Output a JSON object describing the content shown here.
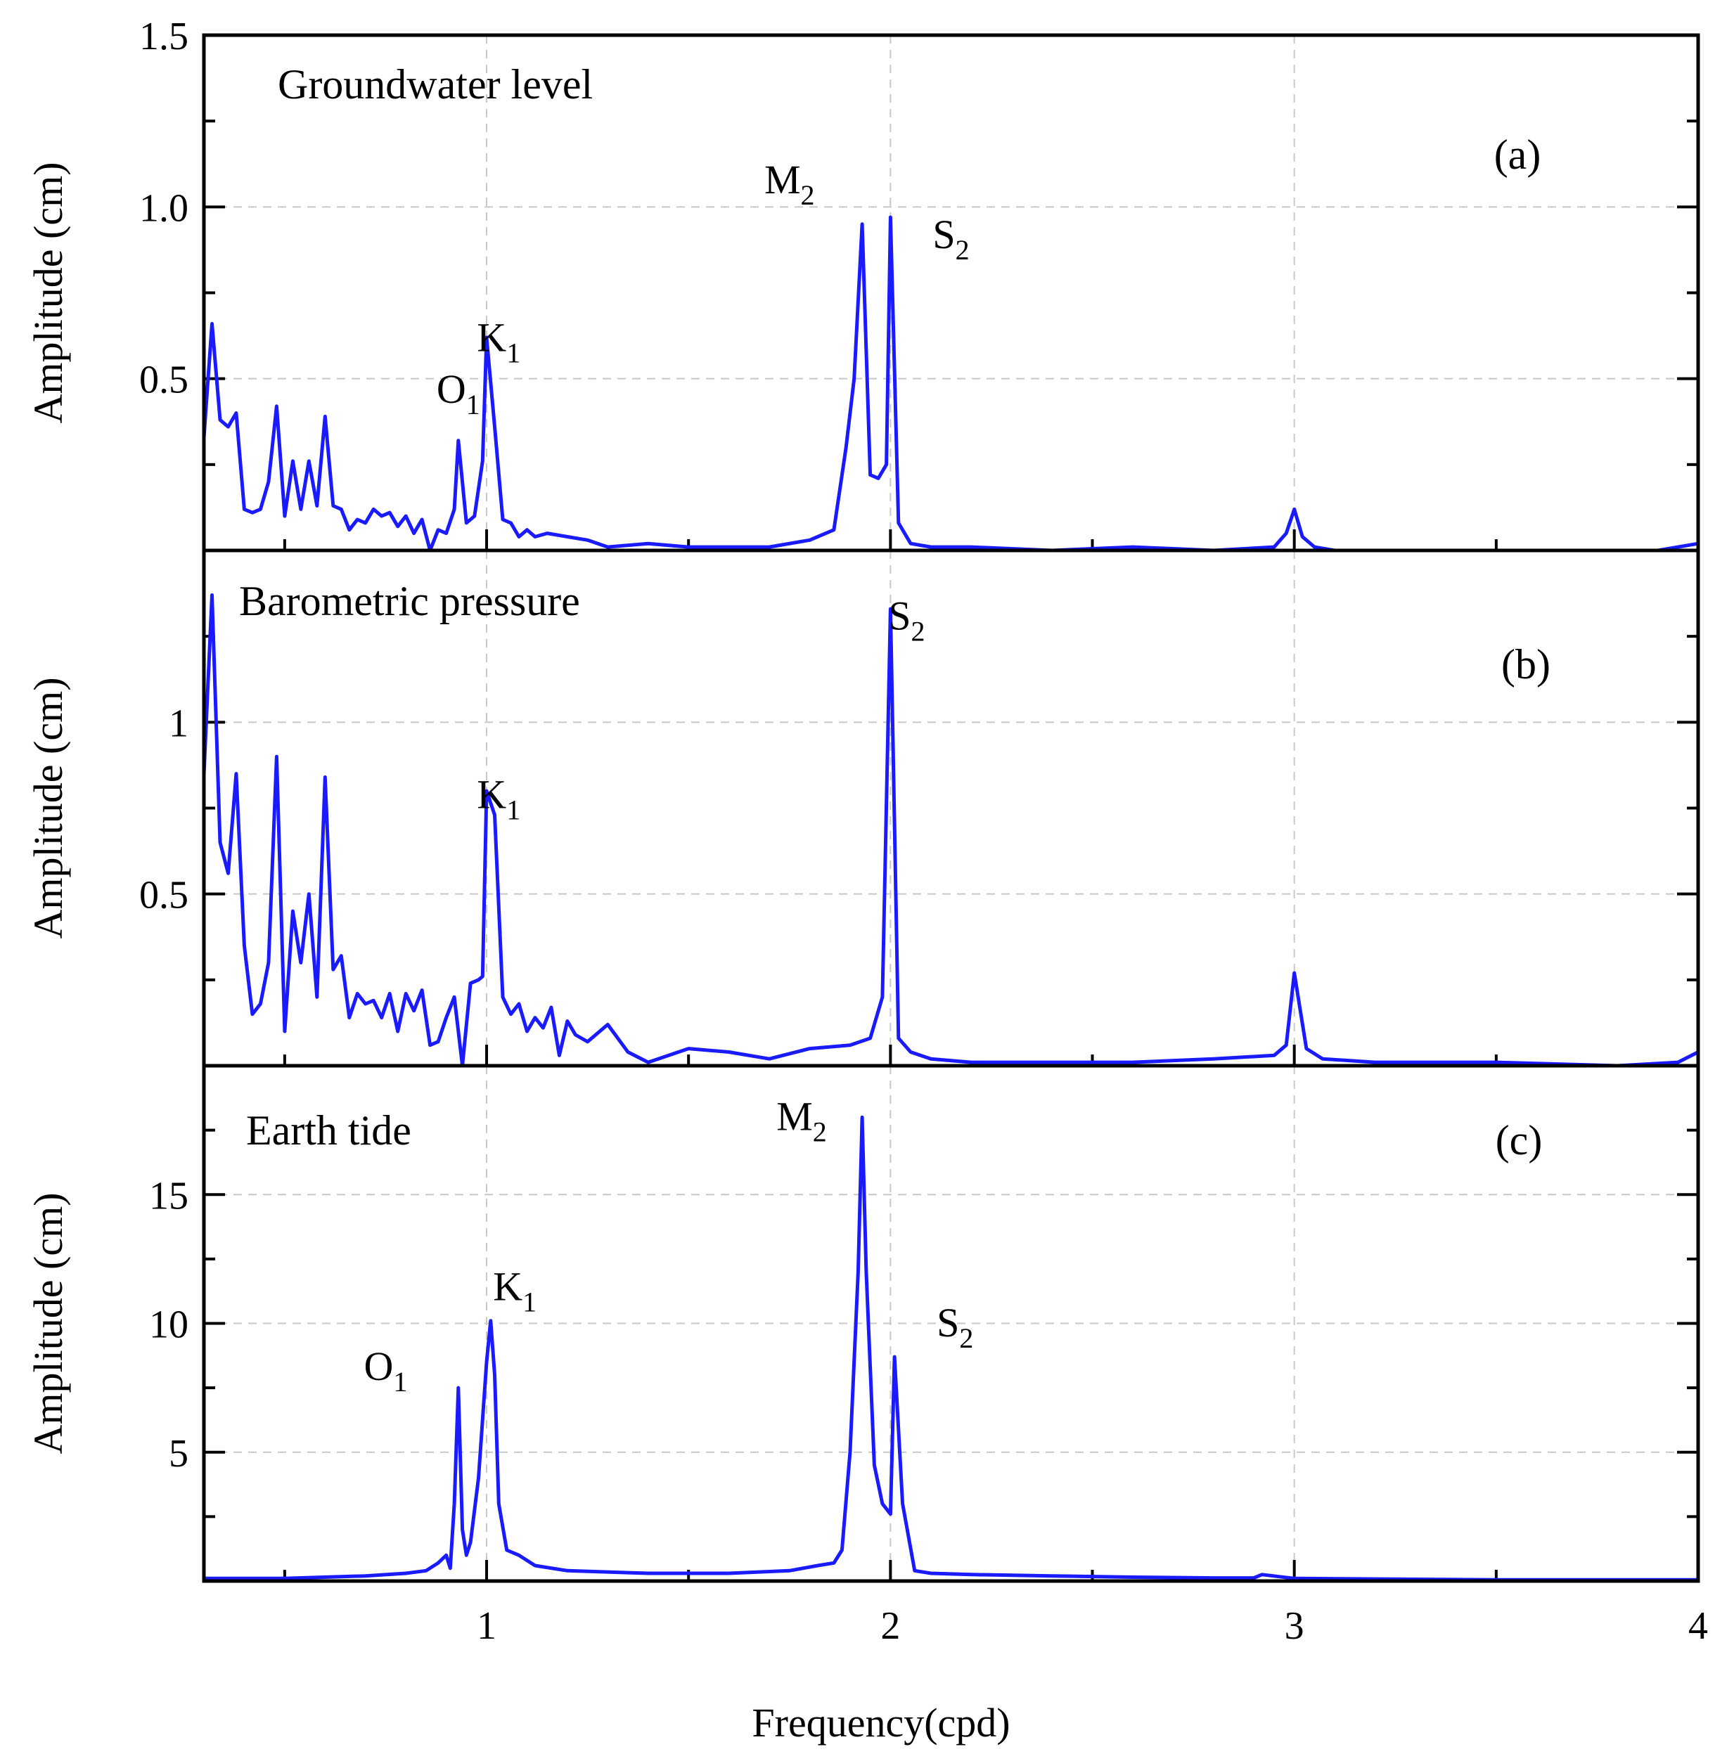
{
  "figure": {
    "xlabel": "Frequency(cpd)"
  },
  "colors": {
    "series": "#1a1aff",
    "axis": "#000000",
    "grid": "#c8c8c8"
  },
  "chart_data": [
    {
      "type": "line",
      "panel": "(a)",
      "title": "Groundwater level",
      "ylabel": "Amplitude (cm)",
      "xlim": [
        0.3,
        4.0
      ],
      "ylim": [
        0.0,
        1.5
      ],
      "xticks": [
        1,
        2,
        3,
        4
      ],
      "xtick_labels": [
        "1",
        "2",
        "3",
        "4"
      ],
      "yticks": [
        0.5,
        1.0,
        1.5
      ],
      "ytick_labels": [
        "0.5",
        "1.0",
        "1.5"
      ],
      "grid": true,
      "peak_labels": [
        {
          "main": "O",
          "sub": "1",
          "x": 0.93,
          "y": 0.43
        },
        {
          "main": "K",
          "sub": "1",
          "x": 1.03,
          "y": 0.58
        },
        {
          "main": "M",
          "sub": "2",
          "x": 1.75,
          "y": 1.04
        },
        {
          "main": "S",
          "sub": "2",
          "x": 2.15,
          "y": 0.88
        }
      ],
      "series": [
        {
          "x": [
            0.3,
            0.32,
            0.34,
            0.36,
            0.38,
            0.4,
            0.42,
            0.44,
            0.46,
            0.48,
            0.5,
            0.52,
            0.54,
            0.56,
            0.58,
            0.6,
            0.62,
            0.64,
            0.66,
            0.68,
            0.7,
            0.72,
            0.74,
            0.76,
            0.78,
            0.8,
            0.82,
            0.84,
            0.86,
            0.88,
            0.9,
            0.92,
            0.93,
            0.95,
            0.97,
            0.99,
            1.0,
            1.02,
            1.04,
            1.06,
            1.08,
            1.1,
            1.12,
            1.15,
            1.2,
            1.25,
            1.3,
            1.4,
            1.5,
            1.6,
            1.7,
            1.8,
            1.86,
            1.89,
            1.91,
            1.93,
            1.95,
            1.97,
            1.99,
            2.0,
            2.02,
            2.05,
            2.1,
            2.2,
            2.4,
            2.6,
            2.8,
            2.95,
            2.98,
            3.0,
            3.02,
            3.05,
            3.1,
            3.3,
            3.6,
            3.9,
            4.0
          ],
          "y": [
            0.33,
            0.66,
            0.38,
            0.36,
            0.4,
            0.12,
            0.11,
            0.12,
            0.2,
            0.42,
            0.1,
            0.26,
            0.12,
            0.26,
            0.13,
            0.39,
            0.13,
            0.12,
            0.06,
            0.09,
            0.08,
            0.12,
            0.1,
            0.11,
            0.07,
            0.1,
            0.05,
            0.09,
            0.0,
            0.06,
            0.05,
            0.12,
            0.32,
            0.08,
            0.1,
            0.26,
            0.62,
            0.36,
            0.09,
            0.08,
            0.04,
            0.06,
            0.04,
            0.05,
            0.04,
            0.03,
            0.01,
            0.02,
            0.01,
            0.01,
            0.01,
            0.03,
            0.06,
            0.3,
            0.5,
            0.95,
            0.22,
            0.21,
            0.25,
            0.97,
            0.08,
            0.02,
            0.01,
            0.01,
            0.0,
            0.01,
            0.0,
            0.01,
            0.05,
            0.12,
            0.04,
            0.01,
            0.0,
            0.0,
            0.0,
            0.0,
            0.02
          ]
        }
      ]
    },
    {
      "type": "line",
      "panel": "(b)",
      "title": "Barometric pressure",
      "ylabel": "Amplitude (cm)",
      "xlim": [
        0.3,
        4.0
      ],
      "ylim": [
        0.0,
        1.5
      ],
      "xticks": [
        1,
        2,
        3,
        4
      ],
      "xtick_labels": [
        "1",
        "2",
        "3",
        "4"
      ],
      "yticks": [
        0.5,
        1.0
      ],
      "ytick_labels": [
        "0.5",
        "1"
      ],
      "grid": true,
      "peak_labels": [
        {
          "main": "K",
          "sub": "1",
          "x": 1.03,
          "y": 0.75
        },
        {
          "main": "S",
          "sub": "2",
          "x": 2.04,
          "y": 1.27
        }
      ],
      "series": [
        {
          "x": [
            0.3,
            0.32,
            0.34,
            0.36,
            0.38,
            0.4,
            0.42,
            0.44,
            0.46,
            0.48,
            0.5,
            0.52,
            0.54,
            0.56,
            0.58,
            0.6,
            0.62,
            0.64,
            0.66,
            0.68,
            0.7,
            0.72,
            0.74,
            0.76,
            0.78,
            0.8,
            0.82,
            0.84,
            0.86,
            0.88,
            0.9,
            0.92,
            0.94,
            0.96,
            0.98,
            0.99,
            1.0,
            1.02,
            1.04,
            1.06,
            1.08,
            1.1,
            1.12,
            1.14,
            1.16,
            1.18,
            1.2,
            1.22,
            1.25,
            1.3,
            1.35,
            1.4,
            1.5,
            1.6,
            1.7,
            1.8,
            1.9,
            1.95,
            1.98,
            2.0,
            2.02,
            2.05,
            2.1,
            2.2,
            2.4,
            2.6,
            2.8,
            2.95,
            2.98,
            3.0,
            3.03,
            3.07,
            3.2,
            3.5,
            3.8,
            3.95,
            4.0
          ],
          "y": [
            0.85,
            1.37,
            0.65,
            0.56,
            0.85,
            0.35,
            0.15,
            0.18,
            0.3,
            0.9,
            0.1,
            0.45,
            0.3,
            0.5,
            0.2,
            0.84,
            0.28,
            0.32,
            0.14,
            0.21,
            0.18,
            0.19,
            0.14,
            0.21,
            0.1,
            0.21,
            0.16,
            0.22,
            0.06,
            0.07,
            0.14,
            0.2,
            0.0,
            0.24,
            0.25,
            0.26,
            0.8,
            0.73,
            0.2,
            0.15,
            0.18,
            0.1,
            0.14,
            0.11,
            0.17,
            0.03,
            0.13,
            0.09,
            0.07,
            0.12,
            0.04,
            0.01,
            0.05,
            0.04,
            0.02,
            0.05,
            0.06,
            0.08,
            0.2,
            1.33,
            0.08,
            0.04,
            0.02,
            0.01,
            0.01,
            0.01,
            0.02,
            0.03,
            0.06,
            0.27,
            0.05,
            0.02,
            0.01,
            0.01,
            0.0,
            0.01,
            0.04
          ]
        }
      ]
    },
    {
      "type": "line",
      "panel": "(c)",
      "title": "Earth tide",
      "ylabel": "Amplitude (cm)",
      "xlim": [
        0.3,
        4.0
      ],
      "ylim": [
        0,
        20
      ],
      "xticks": [
        1,
        2,
        3,
        4
      ],
      "xtick_labels": [
        "1",
        "2",
        "3",
        "4"
      ],
      "yticks": [
        5,
        10,
        15
      ],
      "ytick_labels": [
        "5",
        "10",
        "15"
      ],
      "grid": true,
      "peak_labels": [
        {
          "main": "O",
          "sub": "1",
          "x": 0.75,
          "y": 7.8
        },
        {
          "main": "K",
          "sub": "1",
          "x": 1.07,
          "y": 10.9
        },
        {
          "main": "M",
          "sub": "2",
          "x": 1.78,
          "y": 17.5
        },
        {
          "main": "S",
          "sub": "2",
          "x": 2.16,
          "y": 9.5
        }
      ],
      "series": [
        {
          "x": [
            0.3,
            0.5,
            0.7,
            0.8,
            0.85,
            0.88,
            0.9,
            0.91,
            0.92,
            0.93,
            0.94,
            0.95,
            0.96,
            0.98,
            1.0,
            1.01,
            1.02,
            1.03,
            1.05,
            1.08,
            1.12,
            1.2,
            1.4,
            1.6,
            1.75,
            1.82,
            1.86,
            1.88,
            1.9,
            1.92,
            1.93,
            1.94,
            1.96,
            1.98,
            2.0,
            2.01,
            2.03,
            2.06,
            2.1,
            2.2,
            2.4,
            2.6,
            2.8,
            2.9,
            2.92,
            3.0,
            3.5,
            4.0
          ],
          "y": [
            0.1,
            0.1,
            0.2,
            0.3,
            0.4,
            0.7,
            1.0,
            0.5,
            3.0,
            7.5,
            2.0,
            1.0,
            1.5,
            4.0,
            8.5,
            10.1,
            8.0,
            3.0,
            1.2,
            1.0,
            0.6,
            0.4,
            0.3,
            0.3,
            0.4,
            0.6,
            0.7,
            1.2,
            5.0,
            12.0,
            18.0,
            12.0,
            4.5,
            3.0,
            2.6,
            8.7,
            3.0,
            0.4,
            0.3,
            0.25,
            0.2,
            0.15,
            0.12,
            0.12,
            0.25,
            0.1,
            0.05,
            0.05
          ]
        }
      ]
    }
  ]
}
